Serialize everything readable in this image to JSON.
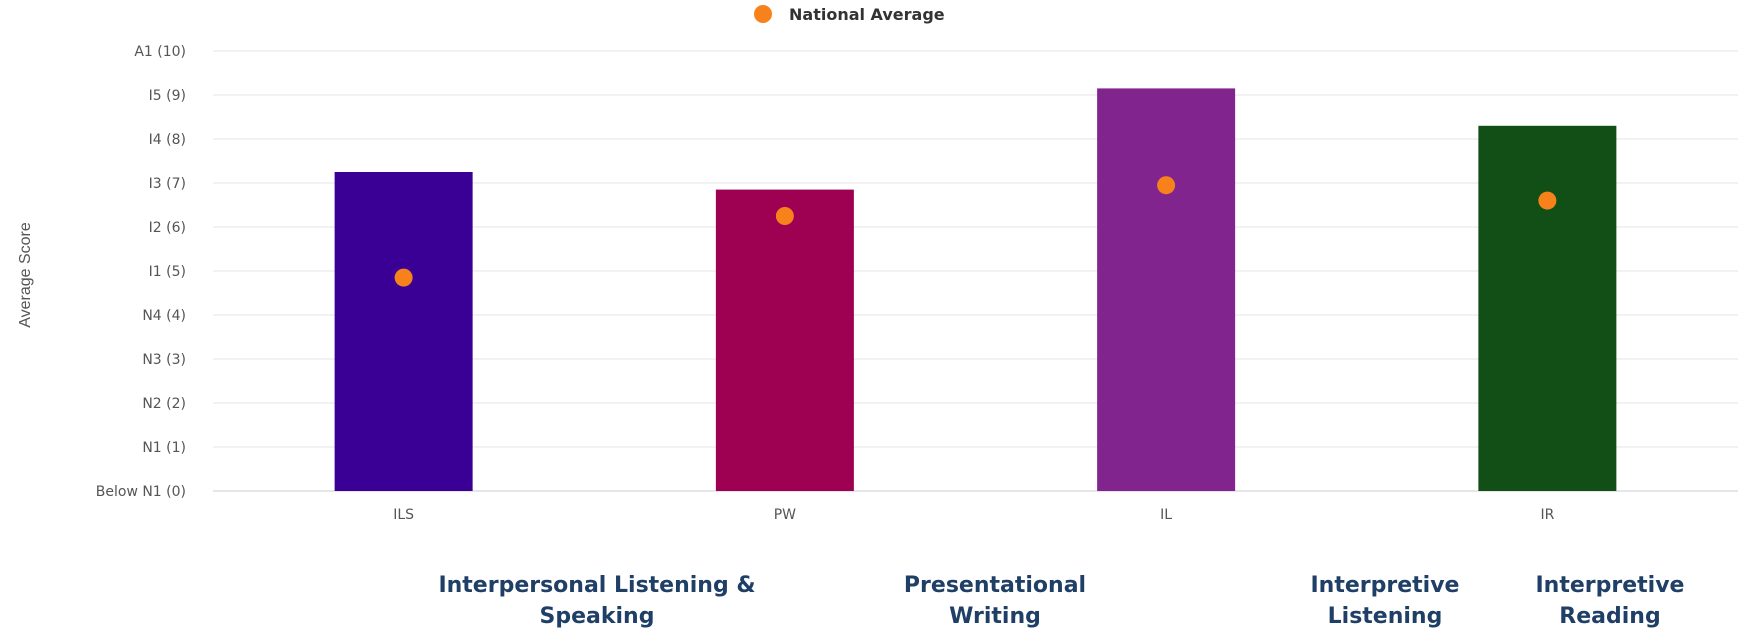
{
  "chart_data": {
    "type": "bar",
    "title": "",
    "xlabel": "",
    "ylabel": "Average Score",
    "categories": [
      "ILS",
      "PW",
      "IL",
      "IR"
    ],
    "values": [
      7.25,
      6.85,
      9.15,
      8.3
    ],
    "bar_colors": [
      "#3a0096",
      "#9e0052",
      "#82248d",
      "#124f16"
    ],
    "series": [
      {
        "name": "National Average",
        "type": "scatter",
        "color": "#f7821b",
        "values": [
          4.85,
          6.25,
          6.95,
          6.6
        ]
      }
    ],
    "ylim": [
      0,
      10
    ],
    "ytick_labels": [
      "Below N1 (0)",
      "N1 (1)",
      "N2 (2)",
      "N3 (3)",
      "N4 (4)",
      "I1 (5)",
      "I2 (6)",
      "I3 (7)",
      "I4 (8)",
      "I5 (9)",
      "A1 (10)"
    ],
    "grid": true,
    "legend": "top-center"
  },
  "category_descriptions": [
    "Interpersonal Listening & Speaking",
    "Presentational Writing",
    "Interpretive Listening",
    "Interpretive Reading"
  ]
}
